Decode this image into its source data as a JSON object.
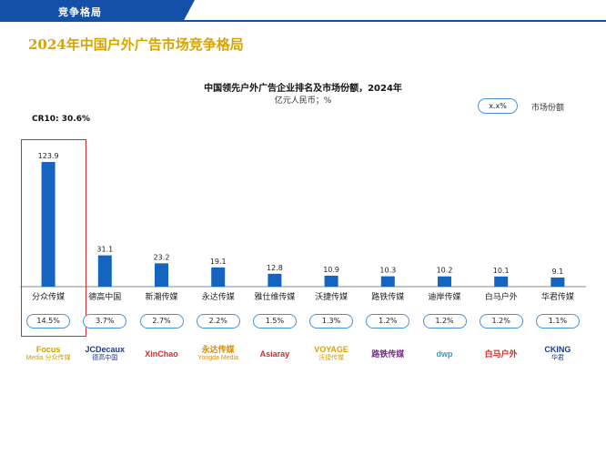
{
  "header": {
    "section_label": "竞争格局"
  },
  "page_title": "2024年中国户外广告市场竞争格局",
  "cr10_label": "CR10: 30.6%",
  "legend": {
    "sample": "x.x%",
    "label": "市场份额"
  },
  "colors": {
    "bar": "#1565c0",
    "accent_blue": "#1550a8",
    "title_gold": "#d9a400",
    "highlight_red": "#d62a2a"
  },
  "chart_data": {
    "type": "bar",
    "title": "中国领先户外广告企业排名及市场份额，2024年",
    "subtitle": "亿元人民币；%",
    "categories": [
      "分众传媒",
      "德高中国",
      "新潮传媒",
      "永达传媒",
      "雅仕维传媒",
      "沃捷传媒",
      "路铁传媒",
      "迪岸传媒",
      "白马户外",
      "华君传媒"
    ],
    "values": [
      123.9,
      31.1,
      23.2,
      19.1,
      12.8,
      10.9,
      10.3,
      10.2,
      10.1,
      9.1
    ],
    "market_share": [
      "14.5%",
      "3.7%",
      "2.7%",
      "2.2%",
      "1.5%",
      "1.3%",
      "1.2%",
      "1.2%",
      "1.2%",
      "1.1%"
    ],
    "ylim": [
      0,
      130
    ],
    "grid": false,
    "legend_position": "top-right"
  },
  "logos": [
    {
      "name": "focus-media-logo",
      "lines": [
        "Focus",
        "Media 分众传媒"
      ],
      "color": "#c8a000"
    },
    {
      "name": "jcdecaux-logo",
      "lines": [
        "JCDecaux",
        "德高中国"
      ],
      "color": "#1a3a8a"
    },
    {
      "name": "xinchao-logo",
      "lines": [
        "XinChao"
      ],
      "color": "#d62a2a"
    },
    {
      "name": "yongda-media-logo",
      "lines": [
        "永达传媒",
        "Yongda Media"
      ],
      "color": "#e08a00"
    },
    {
      "name": "asiaray-logo",
      "lines": [
        "Asiaray"
      ],
      "color": "#d62a2a"
    },
    {
      "name": "voyage-logo",
      "lines": [
        "VOYAGE",
        "沃捷传媒"
      ],
      "color": "#e0a000"
    },
    {
      "name": "lutie-media-logo",
      "lines": [
        "路铁传媒"
      ],
      "color": "#7a2a8a"
    },
    {
      "name": "dwp-logo",
      "lines": [
        "dwp"
      ],
      "color": "#2aa0c0"
    },
    {
      "name": "baima-outdoor-logo",
      "lines": [
        "白马户外"
      ],
      "color": "#d62a2a"
    },
    {
      "name": "cking-logo",
      "lines": [
        "CKING",
        "华君"
      ],
      "color": "#1a3a8a"
    }
  ]
}
